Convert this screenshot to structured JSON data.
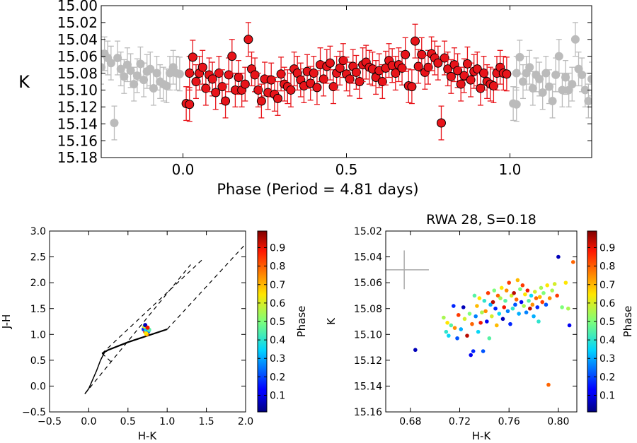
{
  "chart_data": [
    {
      "type": "scatter",
      "name": "lightcurve",
      "xlabel": "Phase (Period = 4.81 days)",
      "ylabel": "K",
      "xlim": [
        -0.25,
        1.25
      ],
      "ylim": [
        15.18,
        15.0
      ],
      "xticks": [
        "0.0",
        "0.5",
        "1.0"
      ],
      "xtick_values": [
        0.0,
        0.5,
        1.0
      ],
      "yticks": [
        "15.00",
        "15.02",
        "15.04",
        "15.06",
        "15.08",
        "15.10",
        "15.12",
        "15.14",
        "15.16",
        "15.18"
      ],
      "ytick_values": [
        15.0,
        15.02,
        15.04,
        15.06,
        15.08,
        15.1,
        15.12,
        15.14,
        15.16,
        15.18
      ],
      "errorbar": 0.02,
      "primary_color": "#e8141a",
      "wrap_color": "#bbbbbb",
      "points": [
        [
          0.01,
          15.116
        ],
        [
          0.02,
          15.117
        ],
        [
          0.02,
          15.08
        ],
        [
          0.03,
          15.061
        ],
        [
          0.04,
          15.09
        ],
        [
          0.05,
          15.08
        ],
        [
          0.06,
          15.073
        ],
        [
          0.07,
          15.098
        ],
        [
          0.08,
          15.082
        ],
        [
          0.09,
          15.087
        ],
        [
          0.1,
          15.103
        ],
        [
          0.11,
          15.08
        ],
        [
          0.12,
          15.096
        ],
        [
          0.13,
          15.113
        ],
        [
          0.14,
          15.082
        ],
        [
          0.15,
          15.06
        ],
        [
          0.16,
          15.1
        ],
        [
          0.17,
          15.085
        ],
        [
          0.18,
          15.1
        ],
        [
          0.19,
          15.093
        ],
        [
          0.2,
          15.04
        ],
        [
          0.21,
          15.075
        ],
        [
          0.22,
          15.082
        ],
        [
          0.23,
          15.1
        ],
        [
          0.24,
          15.113
        ],
        [
          0.25,
          15.087
        ],
        [
          0.26,
          15.103
        ],
        [
          0.27,
          15.088
        ],
        [
          0.28,
          15.105
        ],
        [
          0.29,
          15.11
        ],
        [
          0.3,
          15.081
        ],
        [
          0.31,
          15.093
        ],
        [
          0.32,
          15.096
        ],
        [
          0.33,
          15.1
        ],
        [
          0.34,
          15.075
        ],
        [
          0.35,
          15.08
        ],
        [
          0.36,
          15.088
        ],
        [
          0.37,
          15.095
        ],
        [
          0.38,
          15.078
        ],
        [
          0.39,
          15.092
        ],
        [
          0.4,
          15.08
        ],
        [
          0.41,
          15.097
        ],
        [
          0.42,
          15.07
        ],
        [
          0.43,
          15.087
        ],
        [
          0.44,
          15.072
        ],
        [
          0.45,
          15.068
        ],
        [
          0.46,
          15.096
        ],
        [
          0.47,
          15.08
        ],
        [
          0.48,
          15.074
        ],
        [
          0.49,
          15.065
        ],
        [
          0.5,
          15.081
        ],
        [
          0.51,
          15.087
        ],
        [
          0.52,
          15.072
        ],
        [
          0.53,
          15.079
        ],
        [
          0.54,
          15.09
        ],
        [
          0.55,
          15.07
        ],
        [
          0.56,
          15.067
        ],
        [
          0.57,
          15.073
        ],
        [
          0.58,
          15.075
        ],
        [
          0.59,
          15.085
        ],
        [
          0.6,
          15.077
        ],
        [
          0.61,
          15.09
        ],
        [
          0.62,
          15.074
        ],
        [
          0.63,
          15.065
        ],
        [
          0.64,
          15.071
        ],
        [
          0.65,
          15.08
        ],
        [
          0.66,
          15.07
        ],
        [
          0.67,
          15.074
        ],
        [
          0.68,
          15.058
        ],
        [
          0.69,
          15.095
        ],
        [
          0.7,
          15.096
        ],
        [
          0.71,
          15.042
        ],
        [
          0.72,
          15.072
        ],
        [
          0.73,
          15.058
        ],
        [
          0.74,
          15.079
        ],
        [
          0.75,
          15.073
        ],
        [
          0.76,
          15.057
        ],
        [
          0.77,
          15.062
        ],
        [
          0.78,
          15.068
        ],
        [
          0.79,
          15.139
        ],
        [
          0.8,
          15.062
        ],
        [
          0.81,
          15.075
        ],
        [
          0.82,
          15.084
        ],
        [
          0.83,
          15.07
        ],
        [
          0.84,
          15.077
        ],
        [
          0.85,
          15.093
        ],
        [
          0.86,
          15.083
        ],
        [
          0.87,
          15.069
        ],
        [
          0.88,
          15.088
        ],
        [
          0.89,
          15.078
        ],
        [
          0.9,
          15.075
        ],
        [
          0.91,
          15.098
        ],
        [
          0.92,
          15.08
        ],
        [
          0.93,
          15.09
        ],
        [
          0.94,
          15.093
        ],
        [
          0.95,
          15.095
        ],
        [
          0.96,
          15.08
        ],
        [
          0.97,
          15.073
        ],
        [
          0.98,
          15.08
        ],
        [
          0.99,
          15.081
        ]
      ]
    },
    {
      "type": "scatter",
      "name": "color-color",
      "xlabel": "H-K",
      "ylabel": "J-H",
      "xlim": [
        -0.5,
        2.0
      ],
      "ylim": [
        -0.5,
        3.0
      ],
      "xticks": [
        "−0.5",
        "0.0",
        "0.5",
        "1.0",
        "1.5",
        "2.0"
      ],
      "xtick_values": [
        -0.5,
        0.0,
        0.5,
        1.0,
        1.5,
        2.0
      ],
      "yticks": [
        "−0.5",
        "0.0",
        "0.5",
        "1.0",
        "1.5",
        "2.0",
        "2.5",
        "3.0"
      ],
      "ytick_values": [
        -0.5,
        0.0,
        0.5,
        1.0,
        1.5,
        2.0,
        2.5,
        3.0
      ],
      "dwarf_locus": [
        [
          -0.05,
          -0.15
        ],
        [
          0.0,
          -0.05
        ],
        [
          0.1,
          0.3
        ],
        [
          0.15,
          0.5
        ],
        [
          0.2,
          0.65
        ]
      ],
      "giant_locus": [
        [
          0.17,
          0.63
        ],
        [
          0.25,
          0.7
        ],
        [
          0.5,
          0.85
        ],
        [
          1.0,
          1.1
        ]
      ],
      "reddening_lines": [
        [
          [
            -0.05,
            -0.15
          ],
          [
            1.3,
            2.35
          ]
        ],
        [
          [
            0.17,
            0.63
          ],
          [
            1.45,
            2.45
          ]
        ],
        [
          [
            1.0,
            1.1
          ],
          [
            2.0,
            2.75
          ]
        ],
        [
          [
            0.17,
            0.63
          ],
          [
            0.3,
            0.45
          ]
        ]
      ],
      "points": [
        [
          0.7,
          1.1,
          0.15
        ],
        [
          0.72,
          1.05,
          0.85
        ],
        [
          0.74,
          1.12,
          0.55
        ],
        [
          0.73,
          1.08,
          0.35
        ],
        [
          0.75,
          1.03,
          0.95
        ],
        [
          0.71,
          1.15,
          0.6
        ],
        [
          0.76,
          1.06,
          0.25
        ],
        [
          0.74,
          1.0,
          0.75
        ],
        [
          0.72,
          1.18,
          0.05
        ],
        [
          0.77,
          1.09,
          0.45
        ],
        [
          0.73,
          1.02,
          0.65
        ],
        [
          0.75,
          1.13,
          0.9
        ]
      ],
      "colorbar": {
        "label": "Phase",
        "ticks": [
          "0.1",
          "0.2",
          "0.3",
          "0.4",
          "0.5",
          "0.6",
          "0.7",
          "0.8",
          "0.9"
        ]
      }
    },
    {
      "type": "scatter",
      "name": "color-magnitude",
      "title": "RWA 28, S=0.18",
      "xlabel": "H-K",
      "ylabel": "K",
      "xlim": [
        0.66,
        0.815
      ],
      "ylim": [
        15.16,
        15.02
      ],
      "xticks": [
        "0.68",
        "0.72",
        "0.76",
        "0.80"
      ],
      "xtick_values": [
        0.68,
        0.72,
        0.76,
        0.8
      ],
      "yticks": [
        "15.02",
        "15.04",
        "15.06",
        "15.08",
        "15.10",
        "15.12",
        "15.14",
        "15.16"
      ],
      "ytick_values": [
        15.02,
        15.04,
        15.06,
        15.08,
        15.1,
        15.12,
        15.14,
        15.16
      ],
      "typical_error": {
        "x": 0.675,
        "y": 15.05,
        "dx": 0.02,
        "dy": 0.015
      },
      "points": [
        [
          0.684,
          15.112,
          0.05
        ],
        [
          0.707,
          15.087,
          0.55
        ],
        [
          0.709,
          15.098,
          0.4
        ],
        [
          0.71,
          15.091,
          0.65
        ],
        [
          0.711,
          15.101,
          0.35
        ],
        [
          0.713,
          15.093,
          0.45
        ],
        [
          0.715,
          15.078,
          0.15
        ],
        [
          0.716,
          15.095,
          0.75
        ],
        [
          0.718,
          15.103,
          0.2
        ],
        [
          0.719,
          15.085,
          0.85
        ],
        [
          0.721,
          15.096,
          0.3
        ],
        [
          0.723,
          15.079,
          0.05
        ],
        [
          0.724,
          15.088,
          0.6
        ],
        [
          0.726,
          15.101,
          0.95
        ],
        [
          0.728,
          15.084,
          0.5
        ],
        [
          0.729,
          15.116,
          0.1
        ],
        [
          0.73,
          15.092,
          0.8
        ],
        [
          0.731,
          15.113,
          0.15
        ],
        [
          0.732,
          15.07,
          0.45
        ],
        [
          0.733,
          15.086,
          0.25
        ],
        [
          0.734,
          15.078,
          0.7
        ],
        [
          0.735,
          15.098,
          0.35
        ],
        [
          0.736,
          15.072,
          0.65
        ],
        [
          0.737,
          15.091,
          0.9
        ],
        [
          0.738,
          15.083,
          0.55
        ],
        [
          0.739,
          15.113,
          0.2
        ],
        [
          0.74,
          15.074,
          0.4
        ],
        [
          0.741,
          15.082,
          0.75
        ],
        [
          0.742,
          15.09,
          0.1
        ],
        [
          0.743,
          15.068,
          0.85
        ],
        [
          0.744,
          15.103,
          0.45
        ],
        [
          0.745,
          15.077,
          0.3
        ],
        [
          0.746,
          15.086,
          0.6
        ],
        [
          0.747,
          15.075,
          0.95
        ],
        [
          0.748,
          15.066,
          0.5
        ],
        [
          0.749,
          15.08,
          0.15
        ],
        [
          0.75,
          15.093,
          0.7
        ],
        [
          0.751,
          15.07,
          0.8
        ],
        [
          0.752,
          15.084,
          0.35
        ],
        [
          0.753,
          15.072,
          0.55
        ],
        [
          0.754,
          15.064,
          0.65
        ],
        [
          0.755,
          15.088,
          0.05
        ],
        [
          0.756,
          15.079,
          0.9
        ],
        [
          0.757,
          15.074,
          0.45
        ],
        [
          0.758,
          15.066,
          0.75
        ],
        [
          0.759,
          15.082,
          0.25
        ],
        [
          0.76,
          15.06,
          0.85
        ],
        [
          0.761,
          15.092,
          0.15
        ],
        [
          0.762,
          15.07,
          0.6
        ],
        [
          0.763,
          15.08,
          0.4
        ],
        [
          0.764,
          15.068,
          0.95
        ],
        [
          0.765,
          15.077,
          0.2
        ],
        [
          0.766,
          15.073,
          0.8
        ],
        [
          0.767,
          15.058,
          0.7
        ],
        [
          0.768,
          15.084,
          0.3
        ],
        [
          0.769,
          15.065,
          0.5
        ],
        [
          0.77,
          15.075,
          0.1
        ],
        [
          0.771,
          15.062,
          0.85
        ],
        [
          0.772,
          15.078,
          0.55
        ],
        [
          0.773,
          15.069,
          0.65
        ],
        [
          0.774,
          15.083,
          0.25
        ],
        [
          0.775,
          15.066,
          0.9
        ],
        [
          0.776,
          15.074,
          0.45
        ],
        [
          0.777,
          15.08,
          0.95
        ],
        [
          0.778,
          15.07,
          0.35
        ],
        [
          0.779,
          15.077,
          0.75
        ],
        [
          0.78,
          15.086,
          0.3
        ],
        [
          0.781,
          15.067,
          0.6
        ],
        [
          0.782,
          15.072,
          0.8
        ],
        [
          0.783,
          15.079,
          0.15
        ],
        [
          0.784,
          15.09,
          0.4
        ],
        [
          0.785,
          15.071,
          0.7
        ],
        [
          0.786,
          15.064,
          0.55
        ],
        [
          0.787,
          15.075,
          0.85
        ],
        [
          0.788,
          15.068,
          0.5
        ],
        [
          0.79,
          15.077,
          0.2
        ],
        [
          0.791,
          15.062,
          0.65
        ],
        [
          0.792,
          15.139,
          0.8
        ],
        [
          0.793,
          15.072,
          0.75
        ],
        [
          0.795,
          15.066,
          0.55
        ],
        [
          0.797,
          15.061,
          0.6
        ],
        [
          0.799,
          15.07,
          0.85
        ],
        [
          0.8,
          15.04,
          0.05
        ],
        [
          0.803,
          15.079,
          0.5
        ],
        [
          0.806,
          15.06,
          0.65
        ],
        [
          0.808,
          15.08,
          0.55
        ],
        [
          0.809,
          15.093,
          0.1
        ],
        [
          0.812,
          15.044,
          0.8
        ]
      ],
      "colorbar": {
        "label": "Phase",
        "ticks": [
          "0.1",
          "0.2",
          "0.3",
          "0.4",
          "0.5",
          "0.6",
          "0.7",
          "0.8",
          "0.9"
        ]
      }
    }
  ]
}
